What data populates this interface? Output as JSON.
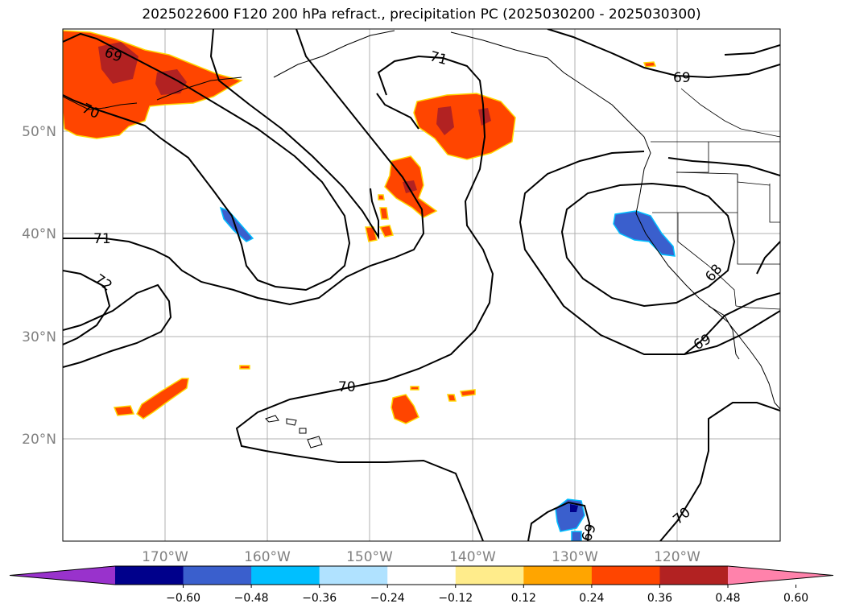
{
  "title": "2025022600 F120 200 hPa refract., precipitation PC (2025030200 - 2025030300)",
  "lat_labels": [
    "50°N",
    "40°N",
    "30°N",
    "20°N"
  ],
  "lon_labels": [
    "170°W",
    "160°W",
    "150°W",
    "140°W",
    "130°W",
    "120°W"
  ],
  "contour_labels": [
    "69",
    "70",
    "71",
    "71",
    "72",
    "69",
    "68",
    "69",
    "70",
    "70",
    "69"
  ],
  "colorbar": {
    "colors": [
      "#9932cc",
      "#00008b",
      "#3a5fcd",
      "#00bfff",
      "#b0e2ff",
      "#ffffff",
      "#ffec8b",
      "#ffa500",
      "#ff4500",
      "#b22222",
      "#ff82ab"
    ],
    "ticks": [
      "−0.60",
      "−0.48",
      "−0.36",
      "−0.24",
      "−0.12",
      "0.12",
      "0.24",
      "0.36",
      "0.48",
      "0.60"
    ]
  },
  "chart_data": {
    "type": "map",
    "title": "2025022600 F120 200 hPa refract., precipitation PC (2025030200 - 2025030300)",
    "lon_range": [
      -180,
      -110
    ],
    "lat_range": [
      10,
      60
    ],
    "grid": true,
    "contour_levels_shown": [
      68,
      69,
      70,
      71,
      72
    ],
    "colorbar_levels": [
      -0.6,
      -0.48,
      -0.36,
      -0.24,
      -0.12,
      0.12,
      0.24,
      0.36,
      0.48,
      0.6
    ],
    "colorbar_extend": "both",
    "colorbar_location": "bottom"
  }
}
